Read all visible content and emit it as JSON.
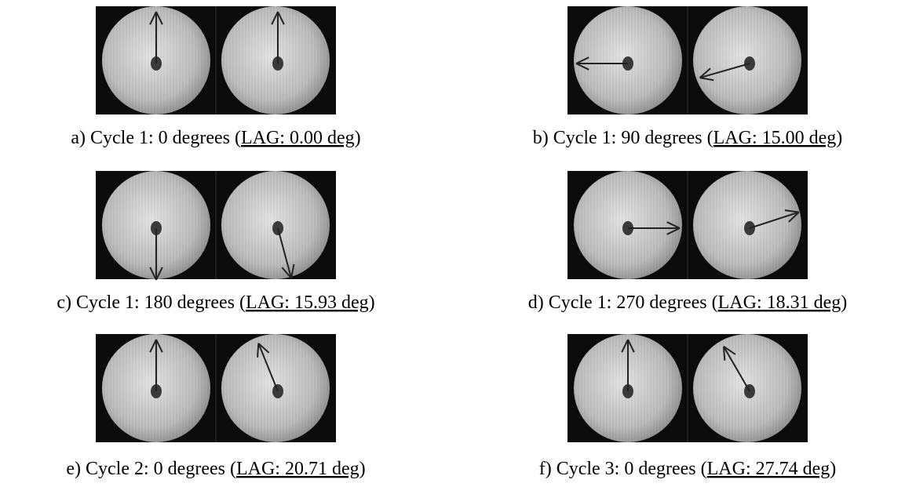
{
  "panels": [
    {
      "caption": "a) Cycle 1: 0 degrees (",
      "lag": "LAG: 0.00 deg",
      "close": ")"
    },
    {
      "caption": "b) Cycle 1: 90 degrees (",
      "lag": "LAG: 15.00 deg",
      "close": ")"
    },
    {
      "caption": "c) Cycle 1: 180 degrees (",
      "lag": "LAG: 15.93 deg",
      "close": ")"
    },
    {
      "caption": "d) Cycle 1: 270 degrees (",
      "lag": "LAG: 18.31 deg",
      "close": ")"
    },
    {
      "caption": "e) Cycle 2: 0 degrees (",
      "lag": "LAG: 20.71 deg",
      "close": ")"
    },
    {
      "caption": "f) Cycle 3: 0 degrees (",
      "lag": "LAG: 27.74 deg",
      "close": ")"
    }
  ]
}
